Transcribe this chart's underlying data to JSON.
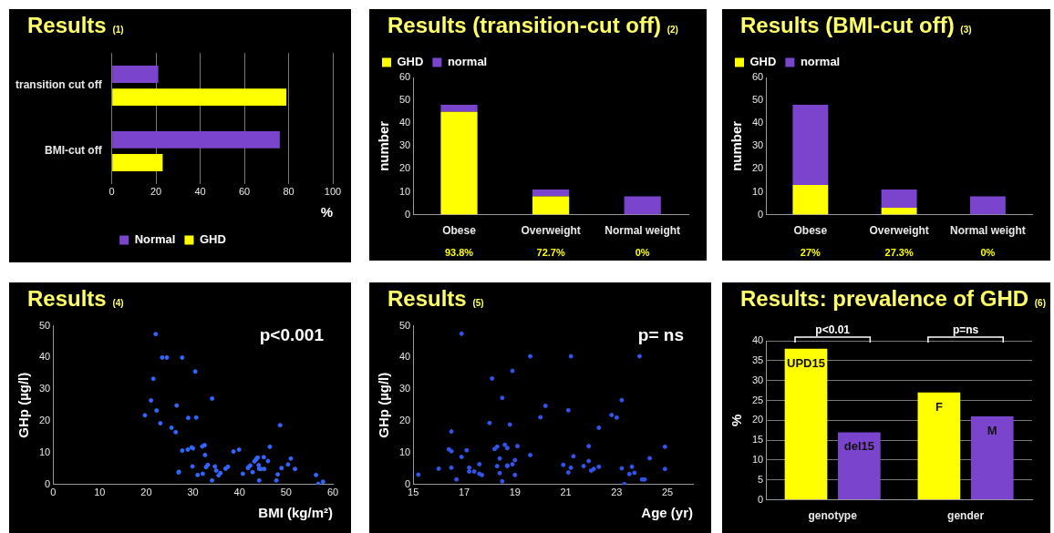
{
  "chart_data": [
    {
      "type": "bar",
      "title": "Results (1)",
      "orientation": "horizontal",
      "categories": [
        "transition cut off",
        "BMI-cut off"
      ],
      "xlabel": "%",
      "xlim": [
        0,
        100
      ],
      "xticks": [
        0,
        20,
        40,
        60,
        80,
        100
      ],
      "grid": "x",
      "legend": "bottom",
      "series": [
        {
          "name": "Normal",
          "color": "#7b44cc",
          "values": [
            21,
            76
          ]
        },
        {
          "name": "GHD",
          "color": "#ffff00",
          "values": [
            79,
            23
          ]
        }
      ]
    },
    {
      "type": "bar",
      "title": "Results (transition-cut off) (2)",
      "stacked": true,
      "categories": [
        "Obese",
        "Overweight",
        "Normal weight"
      ],
      "ylabel": "number",
      "ylim": [
        0,
        60
      ],
      "yticks": [
        0,
        10,
        20,
        30,
        40,
        50,
        60
      ],
      "legend": "top left",
      "series": [
        {
          "name": "GHD",
          "color": "#ffff00",
          "values": [
            45,
            8,
            0
          ]
        },
        {
          "name": "normal",
          "color": "#7b44cc",
          "values": [
            3,
            3,
            8
          ]
        }
      ],
      "annotations": [
        "93.8%",
        "72.7%",
        "0%"
      ]
    },
    {
      "type": "bar",
      "title": "Results (BMI-cut off) (3)",
      "stacked": true,
      "categories": [
        "Obese",
        "Overweight",
        "Normal weight"
      ],
      "ylabel": "number",
      "ylim": [
        0,
        60
      ],
      "yticks": [
        0,
        10,
        20,
        30,
        40,
        50,
        60
      ],
      "legend": "top left",
      "series": [
        {
          "name": "GHD",
          "color": "#ffff00",
          "values": [
            13,
            3,
            0
          ]
        },
        {
          "name": "normal",
          "color": "#7b44cc",
          "values": [
            35,
            8,
            8
          ]
        }
      ],
      "annotations": [
        "27%",
        "27.3%",
        "0%"
      ]
    },
    {
      "type": "scatter",
      "title": "Results (4)",
      "xlabel": "BMI (kg/m²)",
      "ylabel": "GHp (µg/l)",
      "xlim": [
        0,
        60
      ],
      "xticks": [
        0,
        10,
        20,
        30,
        40,
        50,
        60
      ],
      "ylim": [
        0,
        50
      ],
      "yticks": [
        0,
        10,
        20,
        30,
        40,
        50
      ],
      "marker": "circle",
      "color": "#3366ff",
      "annotations": [
        "p<0.001"
      ],
      "x": [
        22.0,
        23.4,
        24.4,
        27.7,
        30.5,
        21.5,
        34.1,
        21.0,
        26.5,
        22.2,
        19.7,
        29.0,
        30.7,
        23.0,
        25.4,
        26.3,
        48.7,
        27.7,
        28.9,
        29.7,
        30.0,
        32.0,
        32.5,
        32.6,
        26.9,
        27.0,
        29.9,
        31.0,
        32.1,
        32.8,
        33.2,
        34.1,
        34.7,
        35.0,
        35.5,
        35.9,
        37.0,
        37.5,
        38.7,
        39.9,
        40.7,
        41.8,
        42.0,
        42.3,
        42.8,
        43.2,
        43.5,
        43.7,
        43.9,
        44.1,
        44.2,
        44.6,
        44.2,
        45.2,
        45.3,
        46.1,
        46.5,
        47.9,
        48.2,
        49.0,
        50.4,
        51.0,
        51.9,
        56.4,
        56.9,
        57.9
      ],
      "values": [
        47.4,
        40,
        40,
        40,
        35.6,
        33.3,
        27.1,
        26.5,
        24.9,
        23.3,
        21.8,
        21.0,
        21.1,
        19.3,
        17.9,
        16.5,
        18.7,
        10.7,
        11.0,
        11.7,
        11.4,
        12.0,
        12.4,
        9.3,
        3.8,
        4.0,
        5.7,
        3.0,
        3.4,
        5.5,
        6.2,
        1.3,
        5.7,
        4.4,
        2.9,
        3.6,
        5.0,
        5.6,
        10.4,
        11.0,
        3.4,
        5.2,
        5.6,
        6.0,
        3.9,
        7.3,
        7.8,
        8.3,
        8.5,
        6.1,
        5.0,
        4.9,
        1.3,
        8.6,
        4.9,
        7.4,
        11.9,
        1.3,
        3.2,
        5.2,
        6.3,
        8.2,
        4.9,
        3.0,
        0.2,
        0.9
      ]
    },
    {
      "type": "scatter",
      "title": "Results (5)",
      "xlabel": "Age (yr)",
      "ylabel": "GHp (µg/l)",
      "xlim": [
        15,
        26
      ],
      "xticks": [
        15,
        17,
        19,
        21,
        23,
        25
      ],
      "ylim": [
        0,
        50
      ],
      "yticks": [
        0,
        10,
        20,
        30,
        40,
        50
      ],
      "marker": "circle",
      "color": "#3355ee",
      "annotations": [
        "p= ns"
      ],
      "x": [
        15.2,
        16.0,
        16.4,
        16.5,
        16.5,
        16.5,
        16.7,
        16.9,
        16.9,
        17.1,
        17.2,
        17.2,
        17.4,
        17.6,
        17.6,
        17.7,
        18.0,
        18.1,
        18.2,
        18.3,
        18.3,
        18.4,
        18.4,
        18.5,
        18.5,
        18.6,
        18.7,
        18.7,
        18.7,
        18.8,
        18.9,
        18.9,
        19.0,
        19.0,
        19.1,
        19.6,
        19.6,
        20.0,
        20.2,
        20.9,
        21.1,
        21.1,
        21.2,
        21.2,
        21.3,
        21.7,
        21.9,
        21.9,
        22.0,
        22.1,
        22.3,
        22.3,
        22.8,
        23.0,
        23.2,
        23.2,
        23.3,
        23.5,
        23.6,
        23.7,
        23.9,
        24.0,
        24.1,
        24.3,
        24.9,
        24.9
      ],
      "values": [
        3.1,
        5.0,
        11.1,
        5.3,
        16.7,
        10.5,
        1.6,
        47.5,
        8.7,
        10.8,
        5.3,
        4.1,
        4.1,
        6.4,
        3.4,
        3.0,
        19.4,
        33.4,
        11.2,
        11.9,
        5.8,
        3.6,
        8.2,
        27.3,
        1.0,
        12.5,
        11.5,
        6.0,
        5.8,
        18.9,
        35.8,
        6.4,
        7.7,
        3.0,
        12.1,
        40.4,
        9.3,
        21.2,
        24.8,
        6.2,
        23.4,
        3.8,
        40.4,
        5.3,
        8.9,
        5.8,
        12.1,
        7.4,
        4.4,
        4.9,
        17.9,
        5.6,
        21.9,
        21.1,
        26.6,
        5.1,
        0.1,
        3.3,
        5.6,
        3.7,
        40.4,
        1.6,
        1.6,
        8.3,
        11.9,
        4.9
      ]
    },
    {
      "type": "bar",
      "title": "Results: prevalence of GHD (6)",
      "categories": [
        "genotype",
        "gender"
      ],
      "ylabel": "%",
      "ylim": [
        0,
        40
      ],
      "yticks": [
        0,
        5,
        10,
        15,
        20,
        25,
        30,
        35,
        40
      ],
      "grid": "y",
      "annotations": [
        "p<0.01",
        "p=ns"
      ],
      "series": [
        {
          "color": "#ffff00",
          "values": [
            38,
            27
          ],
          "value_labels": [
            "UPD15",
            "F"
          ]
        },
        {
          "color": "#7b44cc",
          "values": [
            17,
            21
          ],
          "value_labels": [
            "del15",
            "M"
          ]
        }
      ]
    }
  ]
}
